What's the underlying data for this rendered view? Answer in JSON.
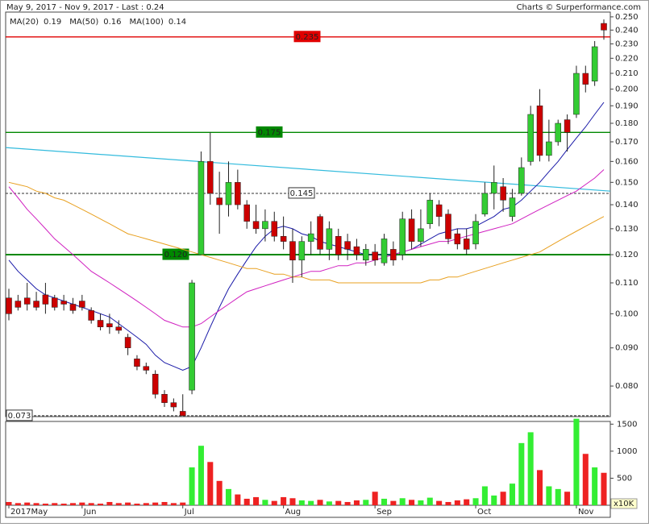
{
  "chart_data": {
    "type": "candlestick",
    "title": "May 9, 2017 - Nov 9, 2017 - Last : 0.24",
    "source": "Charts © Surperformance.com",
    "log_scale": true,
    "grid": false,
    "up_color": "#33cc33",
    "down_color": "#cc0000",
    "categories": [
      "2017May",
      null,
      null,
      null,
      null,
      null,
      null,
      null,
      "Jun",
      null,
      null,
      null,
      null,
      null,
      null,
      null,
      null,
      null,
      null,
      "Jul",
      null,
      null,
      null,
      null,
      null,
      null,
      null,
      null,
      null,
      null,
      "Aug",
      null,
      null,
      null,
      null,
      null,
      null,
      null,
      null,
      null,
      "Sep",
      null,
      null,
      null,
      null,
      null,
      null,
      null,
      null,
      null,
      null,
      "Oct",
      null,
      null,
      null,
      null,
      null,
      null,
      null,
      null,
      null,
      null,
      "Nov",
      null,
      null,
      null
    ],
    "open": [
      0.105,
      0.104,
      0.105,
      0.104,
      0.106,
      0.105,
      0.104,
      0.103,
      0.104,
      0.101,
      0.098,
      0.097,
      0.096,
      0.093,
      0.087,
      0.085,
      0.083,
      0.078,
      0.076,
      0.074,
      0.079,
      0.12,
      0.16,
      0.143,
      0.14,
      0.15,
      0.14,
      0.133,
      0.13,
      0.133,
      0.127,
      0.125,
      0.118,
      0.125,
      0.135,
      0.122,
      0.127,
      0.125,
      0.123,
      0.118,
      0.121,
      0.117,
      0.122,
      0.12,
      0.134,
      0.125,
      0.132,
      0.14,
      0.136,
      0.128,
      0.126,
      0.124,
      0.136,
      0.145,
      0.148,
      0.135,
      0.145,
      0.16,
      0.19,
      0.163,
      0.17,
      0.182,
      0.185,
      0.21,
      0.205,
      0.245
    ],
    "high": [
      0.108,
      0.106,
      0.11,
      0.107,
      0.11,
      0.106,
      0.106,
      0.105,
      0.106,
      0.102,
      0.1,
      0.1,
      0.098,
      0.094,
      0.088,
      0.086,
      0.084,
      0.079,
      0.077,
      0.078,
      0.111,
      0.165,
      0.175,
      0.155,
      0.16,
      0.156,
      0.142,
      0.14,
      0.138,
      0.137,
      0.135,
      0.13,
      0.127,
      0.133,
      0.136,
      0.133,
      0.13,
      0.128,
      0.126,
      0.124,
      0.124,
      0.128,
      0.125,
      0.137,
      0.138,
      0.138,
      0.145,
      0.142,
      0.138,
      0.13,
      0.13,
      0.136,
      0.15,
      0.158,
      0.152,
      0.147,
      0.162,
      0.19,
      0.2,
      0.182,
      0.182,
      0.185,
      0.215,
      0.215,
      0.232,
      0.248
    ],
    "low": [
      0.098,
      0.101,
      0.101,
      0.101,
      0.1,
      0.101,
      0.101,
      0.1,
      0.101,
      0.097,
      0.095,
      0.094,
      0.094,
      0.088,
      0.084,
      0.083,
      0.077,
      0.075,
      0.074,
      0.073,
      0.078,
      0.12,
      0.14,
      0.128,
      0.135,
      0.138,
      0.13,
      0.128,
      0.125,
      0.125,
      0.122,
      0.11,
      0.112,
      0.12,
      0.12,
      0.118,
      0.118,
      0.118,
      0.118,
      0.116,
      0.116,
      0.116,
      0.116,
      0.118,
      0.122,
      0.123,
      0.13,
      0.131,
      0.124,
      0.122,
      0.12,
      0.122,
      0.135,
      0.138,
      0.137,
      0.133,
      0.144,
      0.158,
      0.16,
      0.16,
      0.168,
      0.165,
      0.183,
      0.198,
      0.202,
      0.233
    ],
    "close": [
      0.1,
      0.102,
      0.103,
      0.102,
      0.103,
      0.102,
      0.103,
      0.101,
      0.102,
      0.098,
      0.096,
      0.096,
      0.095,
      0.09,
      0.085,
      0.084,
      0.078,
      0.076,
      0.075,
      0.073,
      0.11,
      0.16,
      0.145,
      0.14,
      0.15,
      0.14,
      0.133,
      0.13,
      0.133,
      0.127,
      0.125,
      0.118,
      0.125,
      0.128,
      0.122,
      0.13,
      0.12,
      0.122,
      0.12,
      0.122,
      0.118,
      0.126,
      0.118,
      0.134,
      0.125,
      0.13,
      0.142,
      0.135,
      0.126,
      0.124,
      0.122,
      0.133,
      0.145,
      0.15,
      0.142,
      0.143,
      0.157,
      0.185,
      0.163,
      0.17,
      0.18,
      0.175,
      0.21,
      0.203,
      0.228,
      0.24
    ],
    "ylim": [
      0.0728,
      0.2537
    ],
    "yticks": [
      {
        "value": 0.25,
        "label": "0.250"
      },
      {
        "value": 0.24,
        "label": "0.240"
      },
      {
        "value": 0.23,
        "label": "0.230"
      },
      {
        "value": 0.22,
        "label": "0.220"
      },
      {
        "value": 0.21,
        "label": "0.210"
      },
      {
        "value": 0.2,
        "label": "0.200"
      },
      {
        "value": 0.19,
        "label": "0.190"
      },
      {
        "value": 0.18,
        "label": "0.180"
      },
      {
        "value": 0.17,
        "label": "0.170"
      },
      {
        "value": 0.16,
        "label": "0.160"
      },
      {
        "value": 0.15,
        "label": "0.150"
      },
      {
        "value": 0.14,
        "label": "0.140"
      },
      {
        "value": 0.13,
        "label": "0.130"
      },
      {
        "value": 0.12,
        "label": "0.120"
      },
      {
        "value": 0.11,
        "label": "0.110"
      },
      {
        "value": 0.1,
        "label": "0.100"
      },
      {
        "value": 0.09,
        "label": "0.090"
      },
      {
        "value": 0.08,
        "label": "0.080"
      }
    ],
    "series": [
      {
        "name": "MA(20)",
        "last": 0.19,
        "color": "#1a1aa8",
        "values": [
          0.118,
          0.114,
          0.111,
          0.108,
          0.106,
          0.105,
          0.104,
          0.103,
          0.102,
          0.101,
          0.1,
          0.099,
          0.097,
          0.095,
          0.093,
          0.091,
          0.088,
          0.086,
          0.085,
          0.084,
          0.085,
          0.09,
          0.096,
          0.102,
          0.108,
          0.113,
          0.118,
          0.123,
          0.127,
          0.13,
          0.131,
          0.13,
          0.128,
          0.127,
          0.125,
          0.124,
          0.123,
          0.122,
          0.121,
          0.12,
          0.12,
          0.12,
          0.12,
          0.121,
          0.122,
          0.124,
          0.126,
          0.128,
          0.129,
          0.13,
          0.13,
          0.131,
          0.133,
          0.135,
          0.138,
          0.139,
          0.142,
          0.146,
          0.15,
          0.155,
          0.16,
          0.166,
          0.172,
          0.178,
          0.185,
          0.192
        ]
      },
      {
        "name": "MA(50)",
        "last": 0.16,
        "color": "#d020c0",
        "values": [
          0.148,
          0.143,
          0.138,
          0.134,
          0.13,
          0.126,
          0.123,
          0.12,
          0.117,
          0.114,
          0.112,
          0.11,
          0.108,
          0.106,
          0.104,
          0.102,
          0.1,
          0.098,
          0.097,
          0.096,
          0.096,
          0.097,
          0.099,
          0.101,
          0.103,
          0.105,
          0.107,
          0.108,
          0.109,
          0.11,
          0.111,
          0.112,
          0.113,
          0.114,
          0.114,
          0.115,
          0.116,
          0.116,
          0.117,
          0.117,
          0.118,
          0.119,
          0.12,
          0.121,
          0.122,
          0.123,
          0.124,
          0.125,
          0.125,
          0.126,
          0.127,
          0.128,
          0.129,
          0.13,
          0.131,
          0.132,
          0.134,
          0.136,
          0.138,
          0.14,
          0.142,
          0.144,
          0.146,
          0.149,
          0.152,
          0.156
        ]
      },
      {
        "name": "MA(100)",
        "last": 0.14,
        "color": "#e8a020",
        "values": [
          0.15,
          0.149,
          0.148,
          0.146,
          0.145,
          0.143,
          0.142,
          0.14,
          0.138,
          0.136,
          0.134,
          0.132,
          0.13,
          0.128,
          0.127,
          0.126,
          0.125,
          0.124,
          0.123,
          0.122,
          0.121,
          0.12,
          0.119,
          0.118,
          0.117,
          0.116,
          0.115,
          0.115,
          0.114,
          0.113,
          0.113,
          0.112,
          0.112,
          0.111,
          0.111,
          0.111,
          0.11,
          0.11,
          0.11,
          0.11,
          0.11,
          0.11,
          0.11,
          0.11,
          0.11,
          0.11,
          0.111,
          0.111,
          0.112,
          0.112,
          0.113,
          0.114,
          0.115,
          0.116,
          0.117,
          0.118,
          0.119,
          0.12,
          0.121,
          0.123,
          0.125,
          0.127,
          0.129,
          0.131,
          0.133,
          0.135
        ]
      }
    ],
    "levels": [
      {
        "value": 0.235,
        "label": "0.235",
        "color": "#e00000",
        "style": "solid"
      },
      {
        "value": 0.175,
        "label": "0.175",
        "color": "#008800",
        "style": "solid"
      },
      {
        "value": 0.145,
        "label": "0.145",
        "color": "#333333",
        "style": "dashed"
      },
      {
        "value": 0.12,
        "label": "0.120",
        "color": "#008800",
        "style": "thick"
      },
      {
        "value": 0.073,
        "label": "0.073",
        "color": "#333333",
        "style": "dashed"
      }
    ],
    "trendline": {
      "values": [
        0.167,
        0.146
      ],
      "color": "#33bbdd"
    },
    "volume": {
      "unit": "x10K",
      "ylim": [
        0,
        1550
      ],
      "yticks": [
        500,
        1000,
        1500
      ],
      "values": [
        60,
        40,
        50,
        40,
        30,
        40,
        30,
        40,
        50,
        40,
        30,
        60,
        40,
        50,
        30,
        40,
        50,
        60,
        40,
        50,
        700,
        1100,
        800,
        450,
        300,
        200,
        120,
        150,
        100,
        80,
        150,
        130,
        90,
        80,
        100,
        70,
        80,
        60,
        90,
        100,
        250,
        120,
        80,
        130,
        100,
        90,
        140,
        80,
        60,
        90,
        110,
        130,
        350,
        180,
        250,
        400,
        1150,
        1350,
        650,
        350,
        300,
        250,
        1600,
        950,
        700,
        600
      ]
    }
  }
}
